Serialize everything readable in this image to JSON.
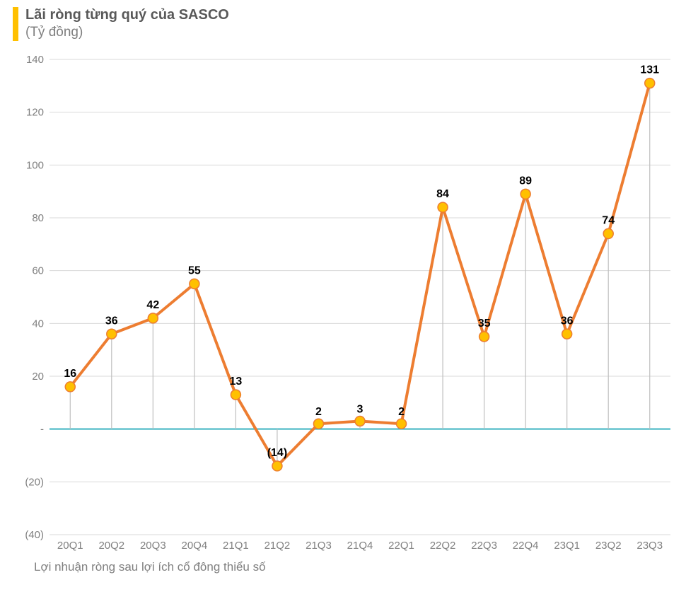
{
  "chart": {
    "type": "line",
    "title": "Lãi ròng từng quý của SASCO",
    "subtitle": "(Tỷ đồng)",
    "footer": "Lợi nhuận ròng sau lợi ích cổ đông thiểu số",
    "categories": [
      "20Q1",
      "20Q2",
      "20Q3",
      "20Q4",
      "21Q1",
      "21Q2",
      "21Q3",
      "21Q4",
      "22Q1",
      "22Q2",
      "22Q3",
      "22Q4",
      "23Q1",
      "23Q2",
      "23Q3"
    ],
    "values": [
      16,
      36,
      42,
      55,
      13,
      -14,
      2,
      3,
      2,
      84,
      35,
      89,
      36,
      74,
      131
    ],
    "display_labels": [
      "16",
      "36",
      "42",
      "55",
      "13",
      "(14)",
      "2",
      "3",
      "2",
      "84",
      "35",
      "89",
      "36",
      "74",
      "131"
    ],
    "ylim": [
      -40,
      140
    ],
    "ytick_step": 20,
    "ytick_labels": {
      "-40": "(40)",
      "-20": "(20)",
      "0": "-",
      "20": "20",
      "40": "40",
      "60": "60",
      "80": "80",
      "100": "100",
      "120": "120",
      "140": "140"
    },
    "accent_color": "#ffc000",
    "line_color": "#ed7d31",
    "marker_fill": "#ffc000",
    "marker_stroke": "#ed7d31",
    "marker_radius": 7,
    "line_width": 4,
    "grid_color": "#d9d9d9",
    "zero_line_color": "#3cb3c0",
    "drop_line_color": "#bfbfbf",
    "background_color": "#ffffff",
    "text_color_muted": "#7f7f7f",
    "title_color": "#595959",
    "label_font_size": 16,
    "tick_font_size": 15,
    "title_font_size": 20
  }
}
